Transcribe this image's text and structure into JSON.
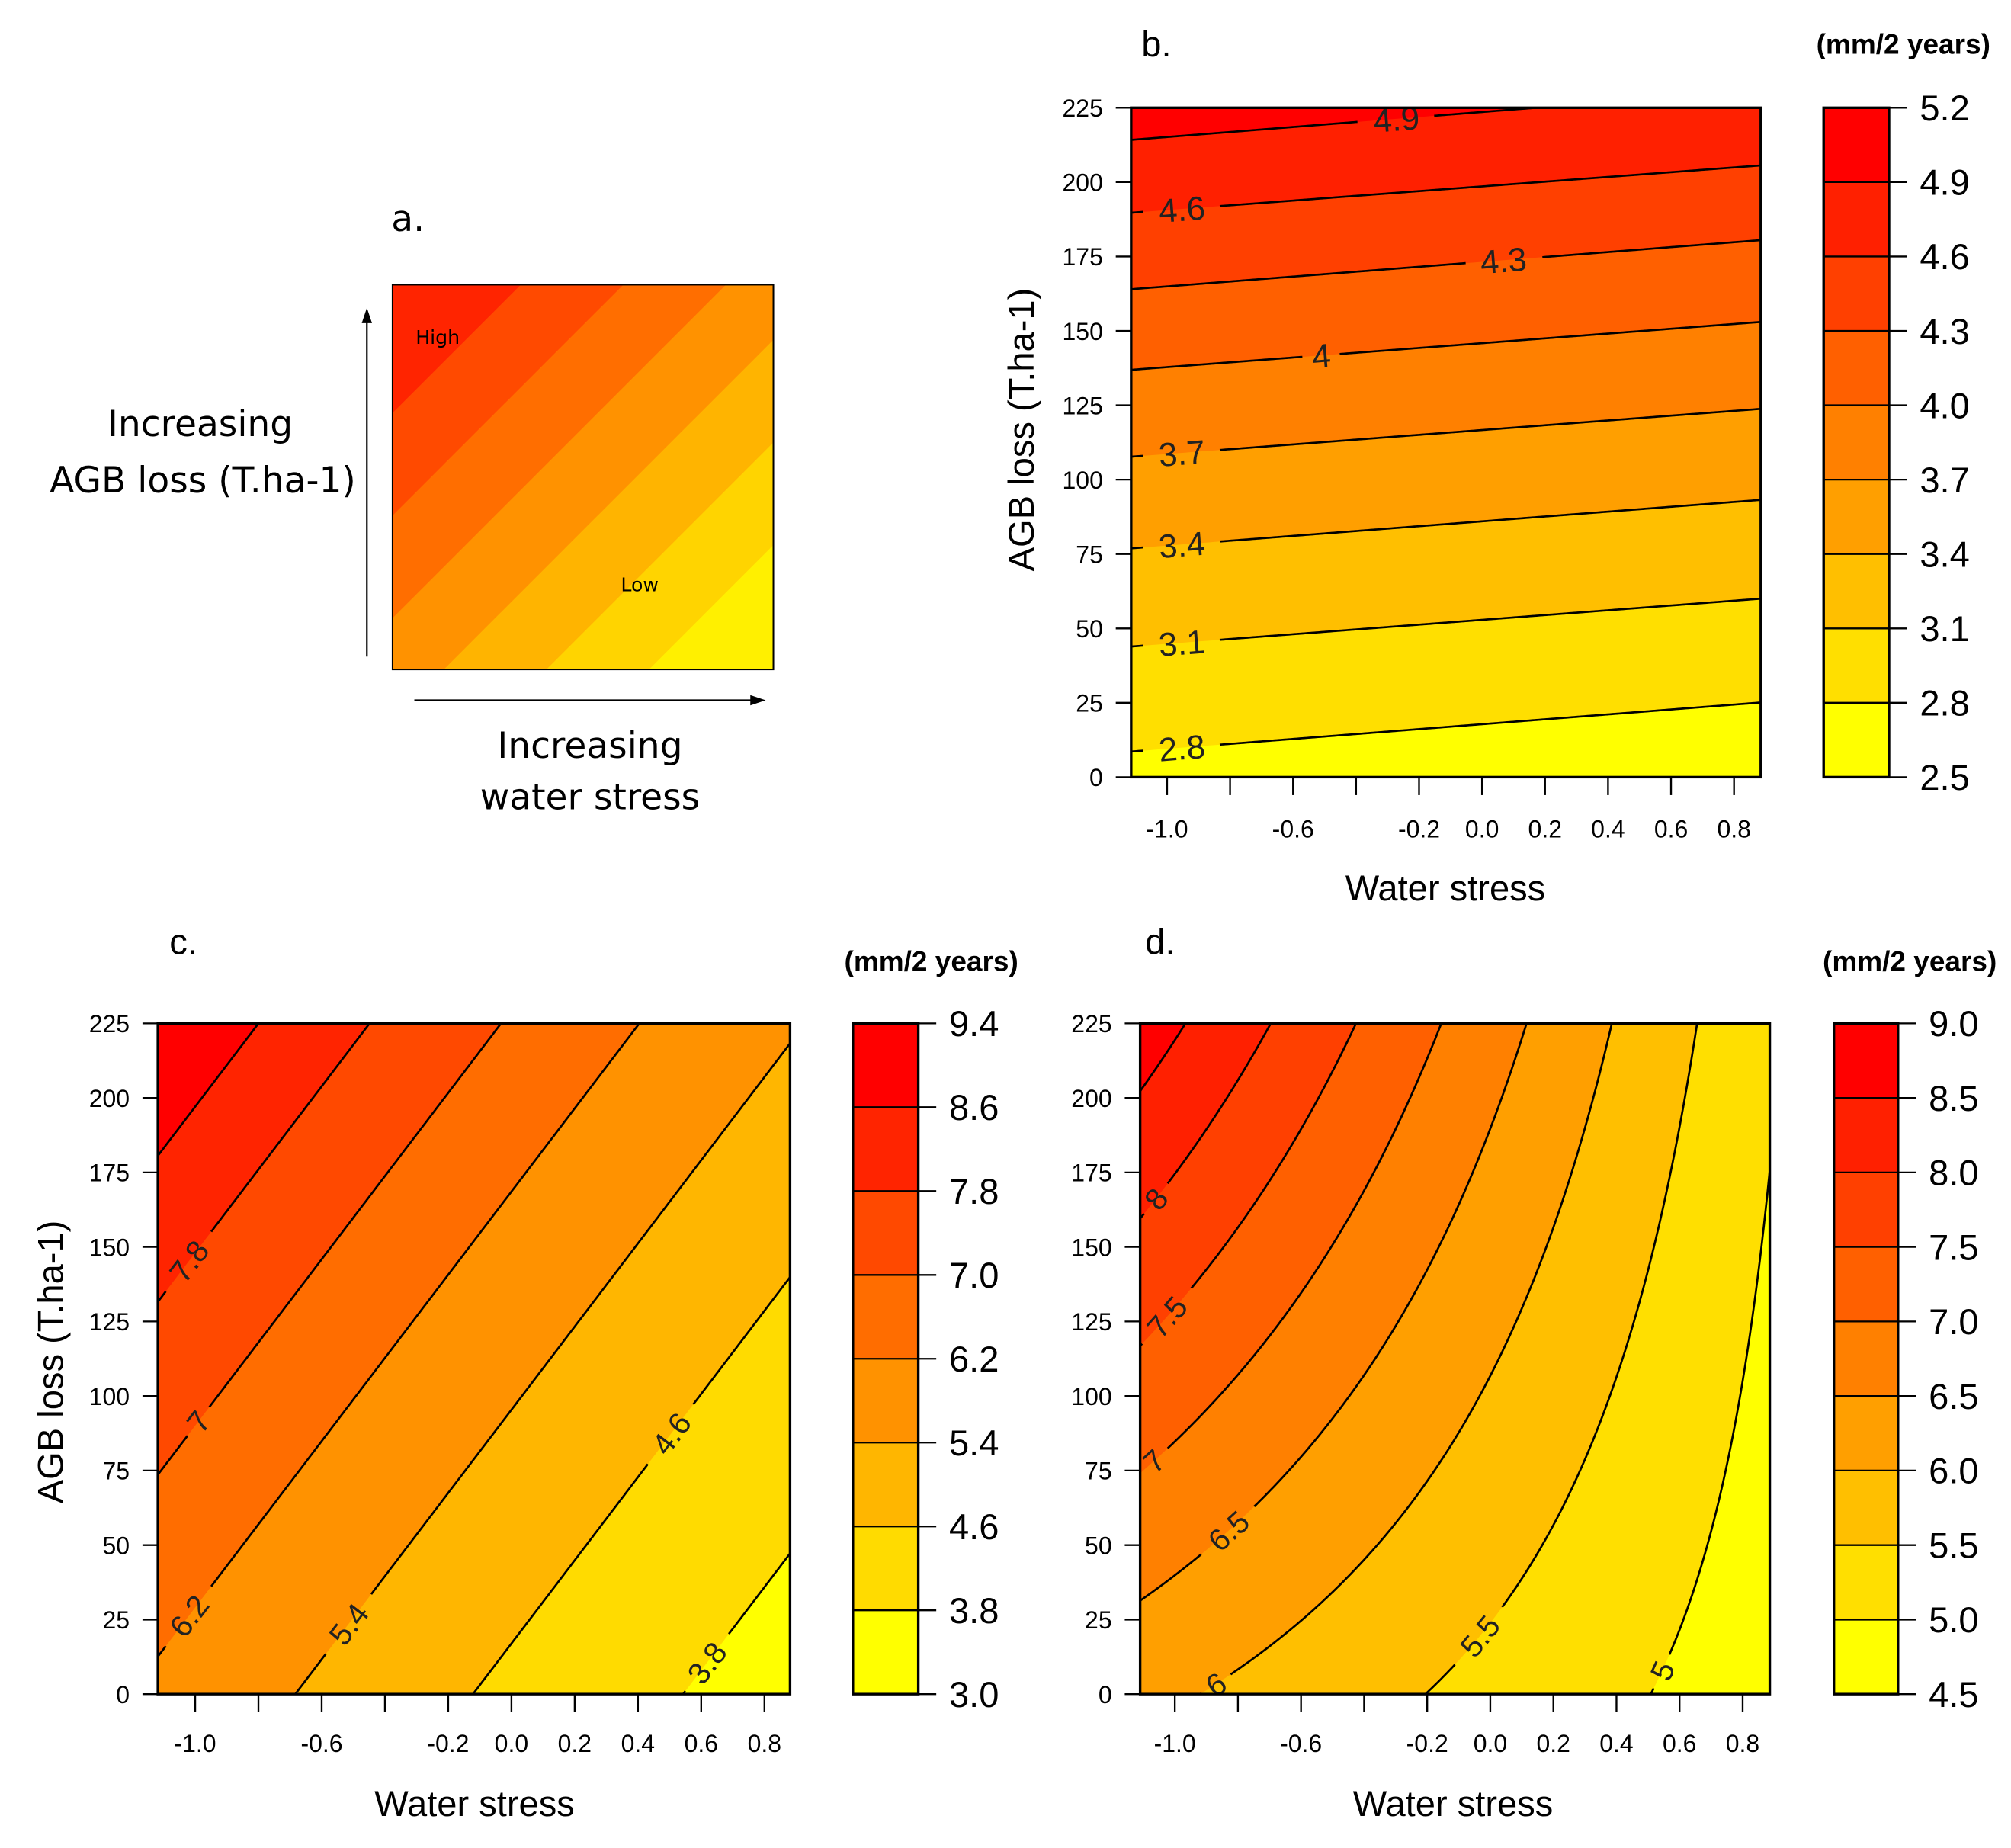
{
  "panel_a": {
    "label": "a.",
    "y_text": [
      "Increasing",
      "AGB loss (T.ha-1)"
    ],
    "x_text": [
      "Increasing",
      "water stress"
    ],
    "high": "High",
    "low": "Low",
    "colors": [
      "#FF2400",
      "#FF4A00",
      "#FF6E00",
      "#FF9200",
      "#FFB400",
      "#FFD400",
      "#FFF000"
    ]
  },
  "chart_data": [
    {
      "id": "b",
      "type": "contour",
      "panel_label": "b.",
      "xlabel": "Water stress",
      "ylabel": "AGB loss (T.ha-1)",
      "xlim": [
        -1.114,
        0.885
      ],
      "ylim": [
        0,
        225
      ],
      "x_ticks": [
        -1.0,
        -0.8,
        -0.6,
        -0.4,
        -0.2,
        0.0,
        0.2,
        0.4,
        0.6,
        0.8
      ],
      "x_tick_labels": [
        {
          "v": -1.0,
          "t": "-1.0"
        },
        {
          "v": -0.6,
          "t": "-0.6"
        },
        {
          "v": -0.2,
          "t": "-0.2"
        },
        {
          "v": 0.0,
          "t": "0.0"
        },
        {
          "v": 0.2,
          "t": "0.2"
        },
        {
          "v": 0.4,
          "t": "0.4"
        },
        {
          "v": 0.6,
          "t": "0.6"
        },
        {
          "v": 0.8,
          "t": "0.8"
        }
      ],
      "y_ticks": [
        {
          "v": 0,
          "t": "0"
        },
        {
          "v": 25,
          "t": "25"
        },
        {
          "v": 50,
          "t": "50"
        },
        {
          "v": 75,
          "t": "75"
        },
        {
          "v": 100,
          "t": "100"
        },
        {
          "v": 125,
          "t": "125"
        },
        {
          "v": 150,
          "t": "150"
        },
        {
          "v": 175,
          "t": "175"
        },
        {
          "v": 200,
          "t": "200"
        },
        {
          "v": 225,
          "t": "225"
        }
      ],
      "legend_title": "(mm/2 years)",
      "levels": [
        2.5,
        2.8,
        3.1,
        3.4,
        3.7,
        4.0,
        4.3,
        4.6,
        4.9,
        5.2
      ],
      "level_labels": [
        "2.5",
        "2.8",
        "3.1",
        "3.4",
        "3.7",
        "4.0",
        "4.3",
        "4.6",
        "4.9",
        "5.2"
      ],
      "colors": [
        "#FFFF00",
        "#FFDF00",
        "#FFBF00",
        "#FF9F00",
        "#FF8000",
        "#FF6000",
        "#FF4000",
        "#FF2000",
        "#FF0000"
      ],
      "contours": [
        {
          "level": 2.8,
          "label": "2.8",
          "label_ws": -0.953,
          "agb_left": 8.6,
          "agb_right": 25.1
        },
        {
          "level": 3.1,
          "label": "3.1",
          "label_ws": -0.953,
          "agb_left": 43.9,
          "agb_right": 60.0
        },
        {
          "level": 3.4,
          "label": "3.4",
          "label_ws": -0.953,
          "agb_left": 76.9,
          "agb_right": 93.2
        },
        {
          "level": 3.7,
          "label": "3.7",
          "label_ws": -0.953,
          "agb_left": 107.7,
          "agb_right": 123.8
        },
        {
          "level": 4.0,
          "label": "4",
          "label_ws": -0.51,
          "agb_left": 136.9,
          "agb_right": 153.0
        },
        {
          "level": 4.3,
          "label": "4.3",
          "label_ws": 0.068,
          "agb_left": 164.0,
          "agb_right": 180.5
        },
        {
          "level": 4.6,
          "label": "4.6",
          "label_ws": -0.953,
          "agb_left": 189.7,
          "agb_right": 205.6
        },
        {
          "level": 4.9,
          "label": "4.9",
          "label_ws": -0.272,
          "agb_left": 214.2,
          "agb_right": 231.0
        }
      ]
    },
    {
      "id": "c",
      "type": "contour",
      "panel_label": "c.",
      "xlabel": "Water stress",
      "ylabel": "AGB loss (T.ha-1)",
      "xlim": [
        -1.118,
        0.881
      ],
      "ylim": [
        0,
        225
      ],
      "x_ticks": [
        -1.0,
        -0.8,
        -0.6,
        -0.4,
        -0.2,
        0.0,
        0.2,
        0.4,
        0.6,
        0.8
      ],
      "x_tick_labels": [
        {
          "v": -1.0,
          "t": "-1.0"
        },
        {
          "v": -0.6,
          "t": "-0.6"
        },
        {
          "v": -0.2,
          "t": "-0.2"
        },
        {
          "v": 0.0,
          "t": "0.0"
        },
        {
          "v": 0.2,
          "t": "0.2"
        },
        {
          "v": 0.4,
          "t": "0.4"
        },
        {
          "v": 0.6,
          "t": "0.6"
        },
        {
          "v": 0.8,
          "t": "0.8"
        }
      ],
      "y_ticks": [
        {
          "v": 0,
          "t": "0"
        },
        {
          "v": 25,
          "t": "25"
        },
        {
          "v": 50,
          "t": "50"
        },
        {
          "v": 75,
          "t": "75"
        },
        {
          "v": 100,
          "t": "100"
        },
        {
          "v": 125,
          "t": "125"
        },
        {
          "v": 150,
          "t": "150"
        },
        {
          "v": 175,
          "t": "175"
        },
        {
          "v": 200,
          "t": "200"
        },
        {
          "v": 225,
          "t": "225"
        }
      ],
      "legend_title": "(mm/2 years)",
      "levels": [
        3.0,
        3.8,
        4.6,
        5.4,
        6.2,
        7.0,
        7.8,
        8.6,
        9.4
      ],
      "level_labels": [
        "3.0",
        "3.8",
        "4.6",
        "5.4",
        "6.2",
        "7.0",
        "7.8",
        "8.6",
        "9.4"
      ],
      "colors": [
        "#FFFF00",
        "#FFDB00",
        "#FFB600",
        "#FF9200",
        "#FF6D00",
        "#FF4900",
        "#FF2400",
        "#FF0000"
      ],
      "contours": [
        {
          "level": 3.8,
          "label": "3.8",
          "label_ws": 0.618,
          "agb_left": -231.7,
          "agb_right": 47.2
        },
        {
          "level": 4.6,
          "label": "4.6",
          "label_ws": 0.505,
          "agb_left": -139.0,
          "agb_right": 139.9
        },
        {
          "level": 5.4,
          "label": "5.4",
          "label_ws": -0.515,
          "agb_left": -60.6,
          "agb_right": 218.3
        },
        {
          "level": 6.2,
          "label": "6.2",
          "label_ws": -1.02,
          "agb_left": 12.6,
          "agb_right": 291.5
        },
        {
          "level": 7.0,
          "label": "7",
          "label_ws": -0.99,
          "agb_left": 73.6,
          "agb_right": 352.5
        },
        {
          "level": 7.8,
          "label": "7.8",
          "label_ws": -1.02,
          "agb_left": 131.6,
          "agb_right": 410.5
        },
        {
          "level": 8.6,
          "label": null,
          "agb_left": 180.6,
          "agb_right": 459.5
        }
      ]
    },
    {
      "id": "d",
      "type": "contour",
      "panel_label": "d.",
      "xlabel": "Water stress",
      "xlim": [
        -1.11,
        0.886
      ],
      "ylim": [
        0,
        225
      ],
      "x_ticks": [
        -1.0,
        -0.8,
        -0.6,
        -0.4,
        -0.2,
        0.0,
        0.2,
        0.4,
        0.6,
        0.8
      ],
      "x_tick_labels": [
        {
          "v": -1.0,
          "t": "-1.0"
        },
        {
          "v": -0.6,
          "t": "-0.6"
        },
        {
          "v": -0.2,
          "t": "-0.2"
        },
        {
          "v": 0.0,
          "t": "0.0"
        },
        {
          "v": 0.2,
          "t": "0.2"
        },
        {
          "v": 0.4,
          "t": "0.4"
        },
        {
          "v": 0.6,
          "t": "0.6"
        },
        {
          "v": 0.8,
          "t": "0.8"
        }
      ],
      "y_ticks": [
        {
          "v": 0,
          "t": "0"
        },
        {
          "v": 25,
          "t": "25"
        },
        {
          "v": 50,
          "t": "50"
        },
        {
          "v": 75,
          "t": "75"
        },
        {
          "v": 100,
          "t": "100"
        },
        {
          "v": 125,
          "t": "125"
        },
        {
          "v": 150,
          "t": "150"
        },
        {
          "v": 175,
          "t": "175"
        },
        {
          "v": 200,
          "t": "200"
        },
        {
          "v": 225,
          "t": "225"
        }
      ],
      "legend_title": "(mm/2 years)",
      "levels": [
        4.5,
        5.0,
        5.5,
        6.0,
        6.5,
        7.0,
        7.5,
        8.0,
        8.5,
        9.0
      ],
      "level_labels": [
        "4.5",
        "5.0",
        "5.5",
        "6.0",
        "6.5",
        "7.0",
        "7.5",
        "8.0",
        "8.5",
        "9.0"
      ],
      "colors": [
        "#FFFF00",
        "#FFDF00",
        "#FFBF00",
        "#FF9F00",
        "#FF8000",
        "#FF6000",
        "#FF4000",
        "#FF2000",
        "#FF0000"
      ],
      "surface": {
        "intercept": 5.356,
        "agb": 0.00603,
        "ws": -0.7,
        "agb_x_ws": -0.00511
      },
      "contours": [
        {
          "level": 5.0,
          "label": "5",
          "label_ws": 0.545
        },
        {
          "level": 5.5,
          "label": "5.5",
          "label_ws": -0.033
        },
        {
          "level": 6.0,
          "label": "6",
          "label_ws": -0.87
        },
        {
          "level": 6.5,
          "label": "6.5",
          "label_ws": -0.83
        },
        {
          "level": 7.0,
          "label": "7",
          "label_ws": -1.066
        },
        {
          "level": 7.5,
          "label": "7.5",
          "label_ws": -1.025
        },
        {
          "level": 8.0,
          "label": "8",
          "label_ws": -1.06
        },
        {
          "level": 8.5,
          "label": null
        }
      ]
    }
  ]
}
